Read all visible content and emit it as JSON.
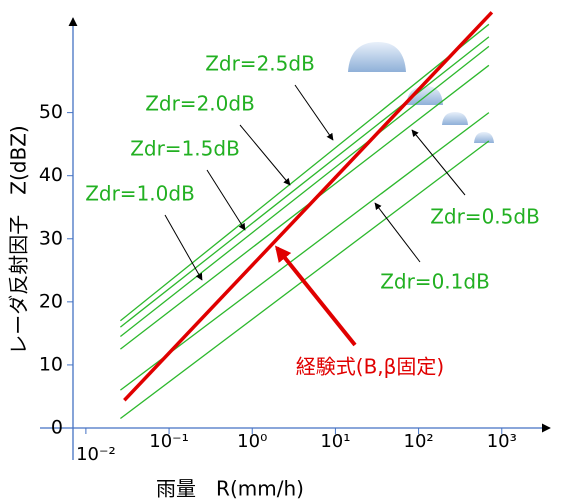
{
  "chart_data": {
    "type": "line",
    "xlabel": "雨量　R(mm/h)",
    "ylabel": "レーダ反射因子　Z(dBZ)",
    "xscale": "log",
    "xlim": [
      0.007,
      3800
    ],
    "ylim": [
      0,
      65
    ],
    "xticks": [
      {
        "value": 0.01,
        "label": "10⁻²"
      },
      {
        "value": 0.1,
        "label": "10⁻¹"
      },
      {
        "value": 1,
        "label": "10⁰"
      },
      {
        "value": 10,
        "label": "10¹"
      },
      {
        "value": 100,
        "label": "10²"
      },
      {
        "value": 1000,
        "label": "10³"
      }
    ],
    "yticks": [
      0,
      10,
      20,
      30,
      40,
      50
    ],
    "series": [
      {
        "name": "Zdr=2.5dB",
        "color": "#2db82d",
        "x": [
          0.026,
          700
        ],
        "values": [
          17,
          64
        ]
      },
      {
        "name": "Zdr=2.0dB",
        "color": "#2db82d",
        "x": [
          0.026,
          700
        ],
        "values": [
          16,
          62
        ]
      },
      {
        "name": "Zdr=1.5dB",
        "color": "#2db82d",
        "x": [
          0.026,
          700
        ],
        "values": [
          14.5,
          60.5
        ]
      },
      {
        "name": "Zdr=1.0dB",
        "color": "#2db82d",
        "x": [
          0.026,
          700
        ],
        "values": [
          12.5,
          57.5
        ]
      },
      {
        "name": "Zdr=0.5dB",
        "color": "#2db82d",
        "x": [
          0.026,
          700
        ],
        "values": [
          6,
          50
        ]
      },
      {
        "name": "Zdr=0.1dB",
        "color": "#2db82d",
        "x": [
          0.026,
          700
        ],
        "values": [
          1.5,
          45.5
        ]
      },
      {
        "name": "経験式(B,β固定)",
        "color": "#e00000",
        "x": [
          0.029,
          760
        ],
        "values": [
          4.4,
          65.9
        ]
      }
    ]
  }
}
